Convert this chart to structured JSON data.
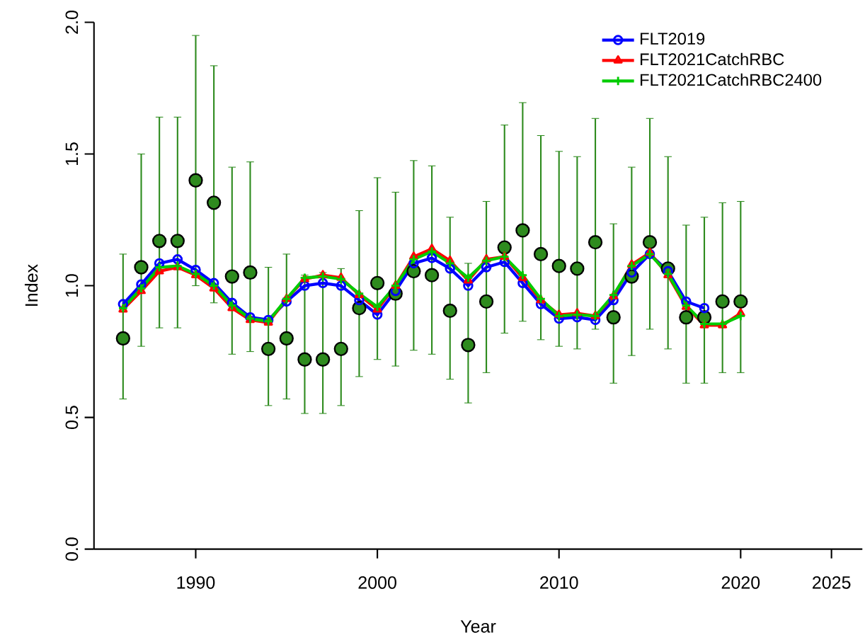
{
  "chart_data": {
    "type": "line",
    "xlabel": "Year",
    "ylabel": "Index",
    "x": [
      1986,
      1987,
      1988,
      1989,
      1990,
      1991,
      1992,
      1993,
      1994,
      1995,
      1996,
      1997,
      1998,
      1999,
      2000,
      2001,
      2002,
      2003,
      2004,
      2005,
      2006,
      2007,
      2008,
      2009,
      2010,
      2011,
      2012,
      2013,
      2014,
      2015,
      2016,
      2017,
      2018,
      2019,
      2020
    ],
    "xlim": [
      1984.4,
      2026.7
    ],
    "xticks": [
      1990,
      2000,
      2010,
      2020,
      2025
    ],
    "ylim": [
      0,
      2
    ],
    "yticks": [
      {
        "value": 0,
        "label": "0.0"
      },
      {
        "value": 0.5,
        "label": "0.5"
      },
      {
        "value": 1,
        "label": "1.0"
      },
      {
        "value": 1.5,
        "label": "1.5"
      },
      {
        "value": 2,
        "label": "2.0"
      }
    ],
    "legend": "top right",
    "line_style": "solid",
    "series": [
      {
        "name": "FLT2019",
        "color": "#0000ff",
        "marker": "circle",
        "x": [
          1986,
          1987,
          1988,
          1989,
          1990,
          1991,
          1992,
          1993,
          1994,
          1995,
          1996,
          1997,
          1998,
          1999,
          2000,
          2001,
          2002,
          2003,
          2004,
          2005,
          2006,
          2007,
          2008,
          2009,
          2010,
          2011,
          2012,
          2013,
          2014,
          2015,
          2016,
          2017,
          2018
        ],
        "values": [
          0.93,
          1.005,
          1.085,
          1.1,
          1.06,
          1.01,
          0.935,
          0.88,
          0.87,
          0.94,
          1.0,
          1.01,
          1.0,
          0.945,
          0.89,
          0.98,
          1.085,
          1.105,
          1.065,
          1.0,
          1.07,
          1.09,
          1.01,
          0.93,
          0.875,
          0.88,
          0.87,
          0.945,
          1.05,
          1.12,
          1.055,
          0.94,
          0.915
        ]
      },
      {
        "name": "FLT2021CatchRBC",
        "color": "#ff0000",
        "marker": "triangle",
        "values": [
          0.91,
          0.98,
          1.055,
          1.07,
          1.04,
          0.99,
          0.915,
          0.87,
          0.86,
          0.95,
          1.025,
          1.04,
          1.03,
          0.965,
          0.91,
          1.0,
          1.11,
          1.14,
          1.095,
          1.02,
          1.1,
          1.11,
          1.03,
          0.945,
          0.89,
          0.895,
          0.885,
          0.96,
          1.08,
          1.125,
          1.04,
          0.92,
          0.85,
          0.85,
          0.895
        ]
      },
      {
        "name": "FLT2021CatchRBC2400",
        "color": "#00cc00",
        "marker": "cross",
        "values": [
          0.915,
          0.99,
          1.07,
          1.075,
          1.045,
          1.0,
          0.925,
          0.875,
          0.865,
          0.95,
          1.03,
          1.035,
          1.025,
          0.97,
          0.92,
          1.0,
          1.1,
          1.13,
          1.085,
          1.03,
          1.095,
          1.11,
          1.04,
          0.95,
          0.885,
          0.89,
          0.885,
          0.965,
          1.075,
          1.12,
          1.045,
          0.925,
          0.855,
          0.855,
          0.885
        ]
      },
      {
        "type": "scatter",
        "color": "#2e8b1e",
        "marker": "circle",
        "values": [
          0.8,
          1.07,
          1.17,
          1.17,
          1.4,
          1.315,
          1.035,
          1.05,
          0.76,
          0.8,
          0.72,
          0.72,
          0.76,
          0.915,
          1.01,
          0.97,
          1.055,
          1.04,
          0.905,
          0.775,
          0.94,
          1.145,
          1.21,
          1.12,
          1.075,
          1.065,
          1.165,
          0.88,
          1.035,
          1.165,
          1.065,
          0.88,
          0.88,
          0.94,
          0.94
        ],
        "errors": [
          [
            0.57,
            1.12
          ],
          [
            0.77,
            1.5
          ],
          [
            0.84,
            1.64
          ],
          [
            0.84,
            1.64
          ],
          [
            1.0,
            1.95
          ],
          [
            0.935,
            1.835
          ],
          [
            0.74,
            1.45
          ],
          [
            0.75,
            1.47
          ],
          [
            0.545,
            1.07
          ],
          [
            0.57,
            1.12
          ],
          [
            0.515,
            1.04
          ],
          [
            0.515,
            1.05
          ],
          [
            0.545,
            1.065
          ],
          [
            0.655,
            1.285
          ],
          [
            0.72,
            1.41
          ],
          [
            0.695,
            1.355
          ],
          [
            0.755,
            1.475
          ],
          [
            0.74,
            1.455
          ],
          [
            0.645,
            1.26
          ],
          [
            0.555,
            1.085
          ],
          [
            0.67,
            1.32
          ],
          [
            0.82,
            1.61
          ],
          [
            0.865,
            1.695
          ],
          [
            0.795,
            1.57
          ],
          [
            0.77,
            1.51
          ],
          [
            0.76,
            1.49
          ],
          [
            0.835,
            1.635
          ],
          [
            0.63,
            1.235
          ],
          [
            0.735,
            1.45
          ],
          [
            0.835,
            1.635
          ],
          [
            0.76,
            1.49
          ],
          [
            0.63,
            1.23
          ],
          [
            0.63,
            1.26
          ],
          [
            0.67,
            1.315
          ],
          [
            0.67,
            1.32
          ]
        ]
      }
    ]
  }
}
